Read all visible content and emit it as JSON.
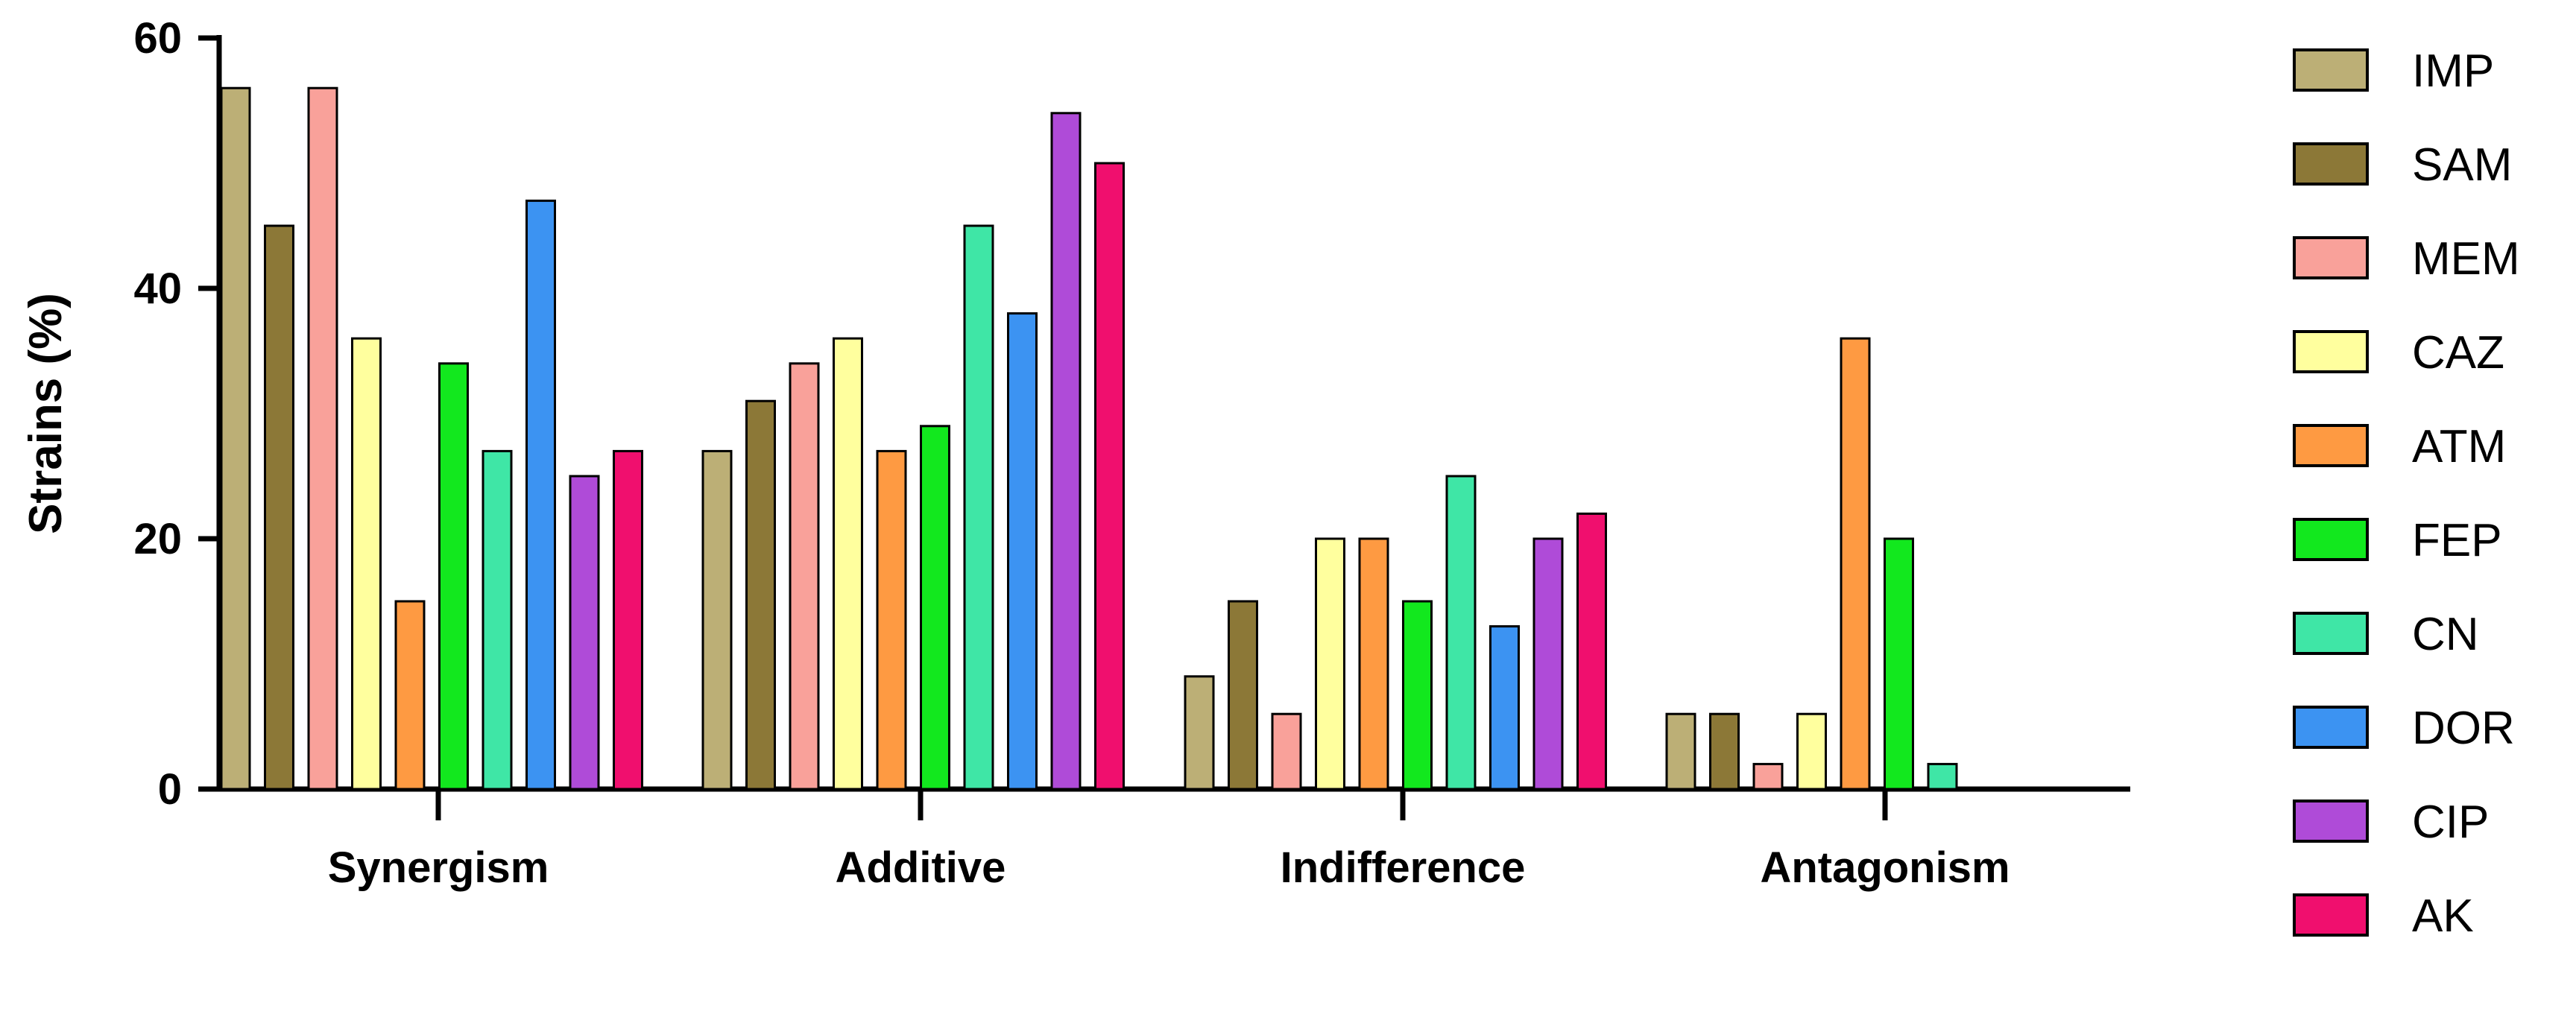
{
  "chart_data": {
    "type": "bar",
    "title": "",
    "xlabel": "",
    "ylabel": "Strains (%)",
    "ylim": [
      0,
      60
    ],
    "yticks": [
      0,
      20,
      40,
      60
    ],
    "grid": false,
    "legend_position": "right",
    "categories": [
      "Synergism",
      "Additive",
      "Indifference",
      "Antagonism"
    ],
    "series": [
      {
        "name": "IMP",
        "color": "#BCAF76",
        "values": [
          56,
          27,
          9,
          6
        ]
      },
      {
        "name": "SAM",
        "color": "#8C7837",
        "values": [
          45,
          31,
          15,
          6
        ]
      },
      {
        "name": "MEM",
        "color": "#F9A19A",
        "values": [
          56,
          34,
          6,
          2
        ]
      },
      {
        "name": "CAZ",
        "color": "#FFFF9E",
        "values": [
          36,
          36,
          20,
          6
        ]
      },
      {
        "name": "ATM",
        "color": "#FE9A42",
        "values": [
          15,
          27,
          20,
          36
        ]
      },
      {
        "name": "FEP",
        "color": "#12E81E",
        "values": [
          34,
          29,
          15,
          20
        ]
      },
      {
        "name": "CN",
        "color": "#3FE6A6",
        "values": [
          27,
          45,
          25,
          2
        ]
      },
      {
        "name": "DOR",
        "color": "#3C93F2",
        "values": [
          47,
          38,
          13,
          0
        ]
      },
      {
        "name": "CIP",
        "color": "#AF4BD8",
        "values": [
          25,
          54,
          20,
          0
        ]
      },
      {
        "name": "AK",
        "color": "#F00F6E",
        "values": [
          27,
          50,
          22,
          0
        ]
      }
    ]
  }
}
